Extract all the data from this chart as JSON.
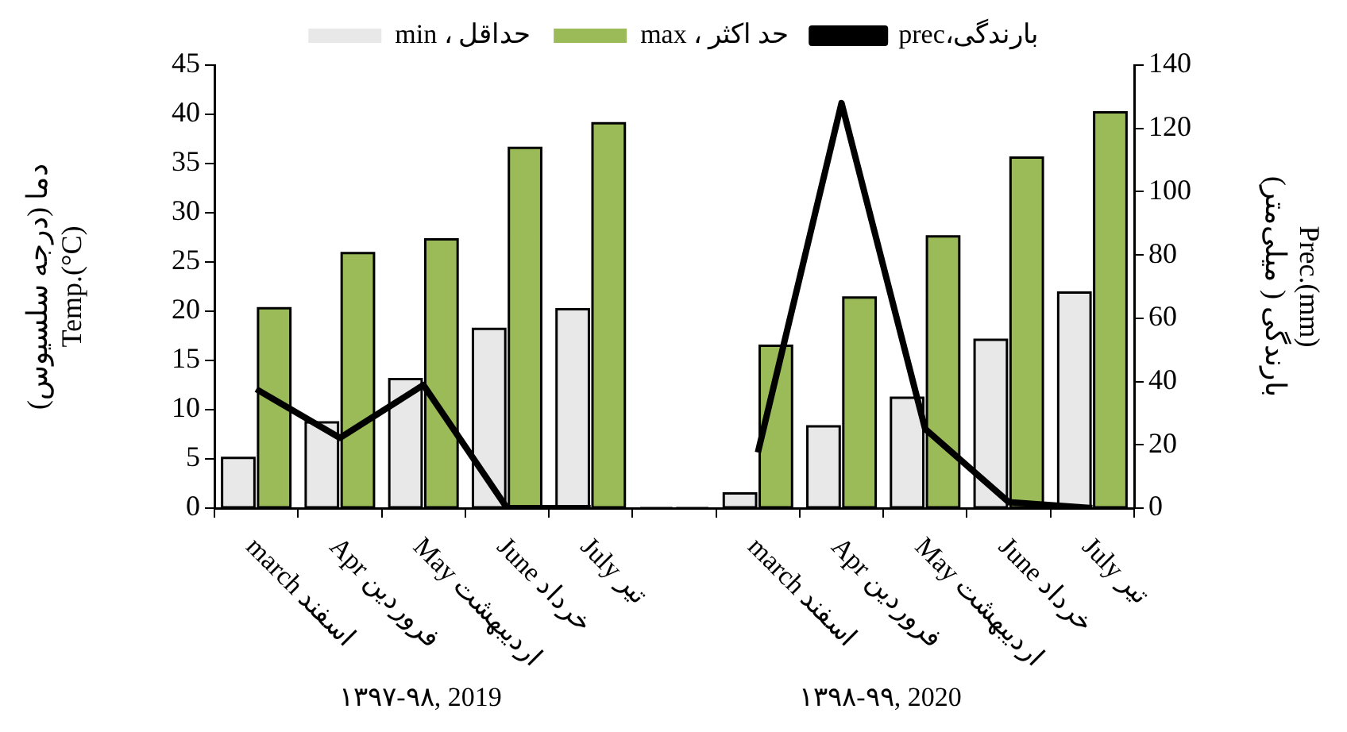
{
  "chart_data": {
    "type": "bar",
    "categories": [
      "march اسفند",
      "Apr فروردین",
      "May اردیبهشت",
      "June خرداد",
      "July تیر",
      null,
      "march اسفند",
      "Apr فروردین",
      "May اردیبهشت",
      "June خرداد",
      "July تیر"
    ],
    "series": [
      {
        "name": "min ، حداقل",
        "color": "#e8e8e8",
        "values": [
          5.1,
          8.7,
          13.1,
          18.2,
          20.2,
          null,
          1.5,
          8.3,
          11.2,
          17.1,
          21.9
        ]
      },
      {
        "name": "max ، حد اکثر",
        "color": "#9bbb59",
        "values": [
          20.3,
          25.9,
          27.3,
          36.6,
          39.1,
          null,
          16.5,
          21.4,
          27.6,
          35.6,
          40.2
        ]
      },
      {
        "name": "prec،بارندگی",
        "type": "line",
        "axis": "y2",
        "color": "#000000",
        "values": [
          37.6,
          22.2,
          38.9,
          0,
          0,
          null,
          17.6,
          128,
          25,
          1.9,
          0
        ]
      }
    ],
    "ylabel": "دما (درجه سلسیوس)\nTemp.(°C)",
    "y2label": "Prec.(mm)\nبارندگی ( میلی‌متر)",
    "ylim": [
      0,
      45
    ],
    "yticks": [
      0,
      5,
      10,
      15,
      20,
      25,
      30,
      35,
      40,
      45
    ],
    "y2lim": [
      0,
      140
    ],
    "y2ticks": [
      0,
      20,
      40,
      60,
      80,
      100,
      120,
      140
    ],
    "annotations": [
      "۱۳۹۷-۹۸, 2019",
      "۱۳۹۸-۹۹, 2020"
    ],
    "legend": "top",
    "grid": false,
    "marker": "none"
  }
}
